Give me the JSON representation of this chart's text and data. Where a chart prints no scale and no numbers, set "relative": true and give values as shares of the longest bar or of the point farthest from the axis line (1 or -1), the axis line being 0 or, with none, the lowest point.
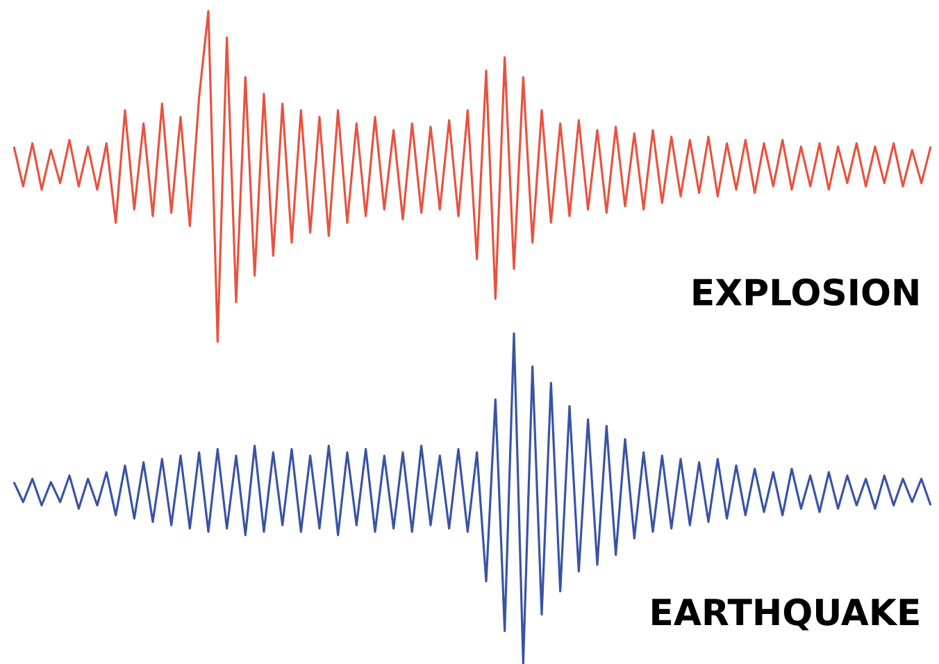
{
  "chart_data": [
    {
      "type": "line",
      "relative": true,
      "categories": [
        null,
        null,
        null,
        null,
        null,
        null,
        null,
        null,
        null,
        null,
        null,
        null,
        null,
        null,
        null,
        null,
        null,
        null,
        null,
        null,
        null,
        null,
        null,
        null,
        null,
        null,
        null,
        null,
        null,
        null,
        null,
        null,
        null,
        null,
        null,
        null,
        null,
        null,
        null,
        null,
        null,
        null,
        null,
        null,
        null,
        null,
        null,
        null,
        null,
        null,
        null,
        null,
        null,
        null,
        null,
        null,
        null,
        null,
        null,
        null,
        null,
        null,
        null,
        null,
        null,
        null,
        null,
        null,
        null,
        null,
        null,
        null,
        null,
        null,
        null,
        null,
        null,
        null,
        null,
        null,
        null,
        null,
        null,
        null,
        null,
        null,
        null,
        null,
        null,
        null,
        null,
        null,
        null,
        null,
        null,
        null,
        null,
        null,
        null,
        null
      ],
      "series": [
        {
          "name": "EXPLOSION",
          "color": "#e8533f",
          "values": [
            0.59,
            0.47,
            0.6,
            0.46,
            0.58,
            0.48,
            0.61,
            0.47,
            0.59,
            0.46,
            0.6,
            0.36,
            0.7,
            0.4,
            0.66,
            0.38,
            0.72,
            0.39,
            0.68,
            0.35,
            0.74,
            1.0,
            0.0,
            0.92,
            0.12,
            0.8,
            0.2,
            0.75,
            0.26,
            0.72,
            0.3,
            0.7,
            0.33,
            0.68,
            0.32,
            0.7,
            0.36,
            0.66,
            0.38,
            0.68,
            0.4,
            0.64,
            0.37,
            0.66,
            0.39,
            0.65,
            0.4,
            0.67,
            0.38,
            0.7,
            0.25,
            0.82,
            0.13,
            0.86,
            0.22,
            0.8,
            0.3,
            0.7,
            0.36,
            0.66,
            0.38,
            0.67,
            0.4,
            0.64,
            0.39,
            0.65,
            0.41,
            0.63,
            0.4,
            0.64,
            0.42,
            0.62,
            0.44,
            0.61,
            0.45,
            0.62,
            0.44,
            0.6,
            0.46,
            0.61,
            0.45,
            0.6,
            0.47,
            0.61,
            0.46,
            0.59,
            0.47,
            0.6,
            0.46,
            0.59,
            0.48,
            0.6,
            0.47,
            0.59,
            0.48,
            0.6,
            0.47,
            0.58,
            0.48,
            0.59
          ]
        }
      ]
    },
    {
      "type": "line",
      "relative": true,
      "categories": [
        null,
        null,
        null,
        null,
        null,
        null,
        null,
        null,
        null,
        null,
        null,
        null,
        null,
        null,
        null,
        null,
        null,
        null,
        null,
        null,
        null,
        null,
        null,
        null,
        null,
        null,
        null,
        null,
        null,
        null,
        null,
        null,
        null,
        null,
        null,
        null,
        null,
        null,
        null,
        null,
        null,
        null,
        null,
        null,
        null,
        null,
        null,
        null,
        null,
        null,
        null,
        null,
        null,
        null,
        null,
        null,
        null,
        null,
        null,
        null,
        null,
        null,
        null,
        null,
        null,
        null,
        null,
        null,
        null,
        null,
        null,
        null,
        null,
        null,
        null,
        null,
        null,
        null,
        null,
        null,
        null,
        null,
        null,
        null,
        null,
        null,
        null,
        null,
        null,
        null,
        null,
        null,
        null,
        null,
        null,
        null,
        null,
        null,
        null,
        null
      ],
      "series": [
        {
          "name": "EARTHQUAKE",
          "color": "#3a53a4",
          "values": [
            0.55,
            0.49,
            0.56,
            0.48,
            0.55,
            0.49,
            0.57,
            0.47,
            0.56,
            0.48,
            0.58,
            0.45,
            0.6,
            0.44,
            0.61,
            0.43,
            0.62,
            0.42,
            0.63,
            0.41,
            0.64,
            0.4,
            0.65,
            0.41,
            0.63,
            0.39,
            0.66,
            0.4,
            0.64,
            0.42,
            0.65,
            0.4,
            0.63,
            0.41,
            0.66,
            0.39,
            0.64,
            0.42,
            0.65,
            0.4,
            0.63,
            0.41,
            0.64,
            0.4,
            0.66,
            0.42,
            0.63,
            0.41,
            0.65,
            0.4,
            0.64,
            0.25,
            0.8,
            0.1,
            1.0,
            0.0,
            0.9,
            0.15,
            0.85,
            0.22,
            0.78,
            0.28,
            0.74,
            0.3,
            0.72,
            0.33,
            0.68,
            0.38,
            0.64,
            0.4,
            0.63,
            0.41,
            0.62,
            0.42,
            0.61,
            0.43,
            0.62,
            0.44,
            0.6,
            0.45,
            0.59,
            0.46,
            0.58,
            0.45,
            0.59,
            0.47,
            0.57,
            0.46,
            0.58,
            0.47,
            0.57,
            0.48,
            0.56,
            0.47,
            0.57,
            0.48,
            0.56,
            0.49,
            0.56,
            0.48
          ]
        }
      ]
    }
  ]
}
